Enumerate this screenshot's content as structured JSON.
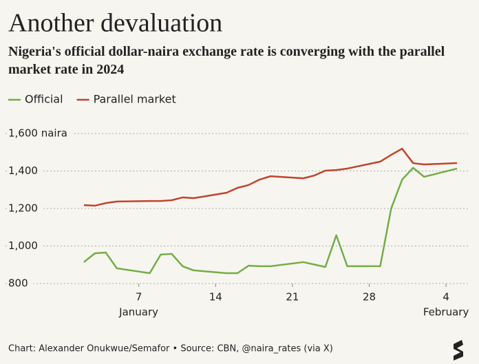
{
  "chart_data": {
    "type": "line",
    "title": "Another devaluation",
    "subtitle": "Nigeria's official dollar-naira exchange rate is converging with the parallel market rate in 2024",
    "source": "Chart: Alexander Onukwue/Semafor • Source: CBN, @naira_rates (via X)",
    "x": [
      2,
      3,
      4,
      5,
      8,
      9,
      10,
      11,
      12,
      15,
      16,
      17,
      18,
      19,
      22,
      23,
      24,
      25,
      26,
      29,
      30,
      31,
      32,
      33,
      36
    ],
    "xlim": [
      0,
      37
    ],
    "xticks": [
      7,
      14,
      21,
      28,
      {
        "value": 35,
        "label": "4"
      }
    ],
    "x_group_labels": [
      {
        "value": 7,
        "label": "January"
      },
      {
        "value": 35,
        "label": "February"
      }
    ],
    "ylim": [
      800,
      1600
    ],
    "yticks": [
      800,
      {
        "value": 1000,
        "label": "1,000"
      },
      {
        "value": 1200,
        "label": "1,200"
      },
      {
        "value": 1400,
        "label": "1,400"
      },
      {
        "value": 1600,
        "label": "1,600 naira"
      }
    ],
    "grid": true,
    "series": [
      {
        "name": "Official",
        "color": "#72ad45",
        "values": [
          914,
          961,
          965,
          881,
          855,
          954,
          958,
          892,
          870,
          855,
          855,
          895,
          892,
          892,
          914,
          901,
          888,
          1057,
          892,
          892,
          1200,
          1354,
          1417,
          1369,
          1413
        ]
      },
      {
        "name": "Parallel market",
        "color": "#c1432c",
        "values": [
          1218,
          1215,
          1229,
          1237,
          1240,
          1240,
          1244,
          1259,
          1255,
          1284,
          1310,
          1325,
          1354,
          1372,
          1361,
          1376,
          1402,
          1405,
          1413,
          1450,
          1486,
          1519,
          1442,
          1435,
          1442
        ]
      }
    ]
  }
}
